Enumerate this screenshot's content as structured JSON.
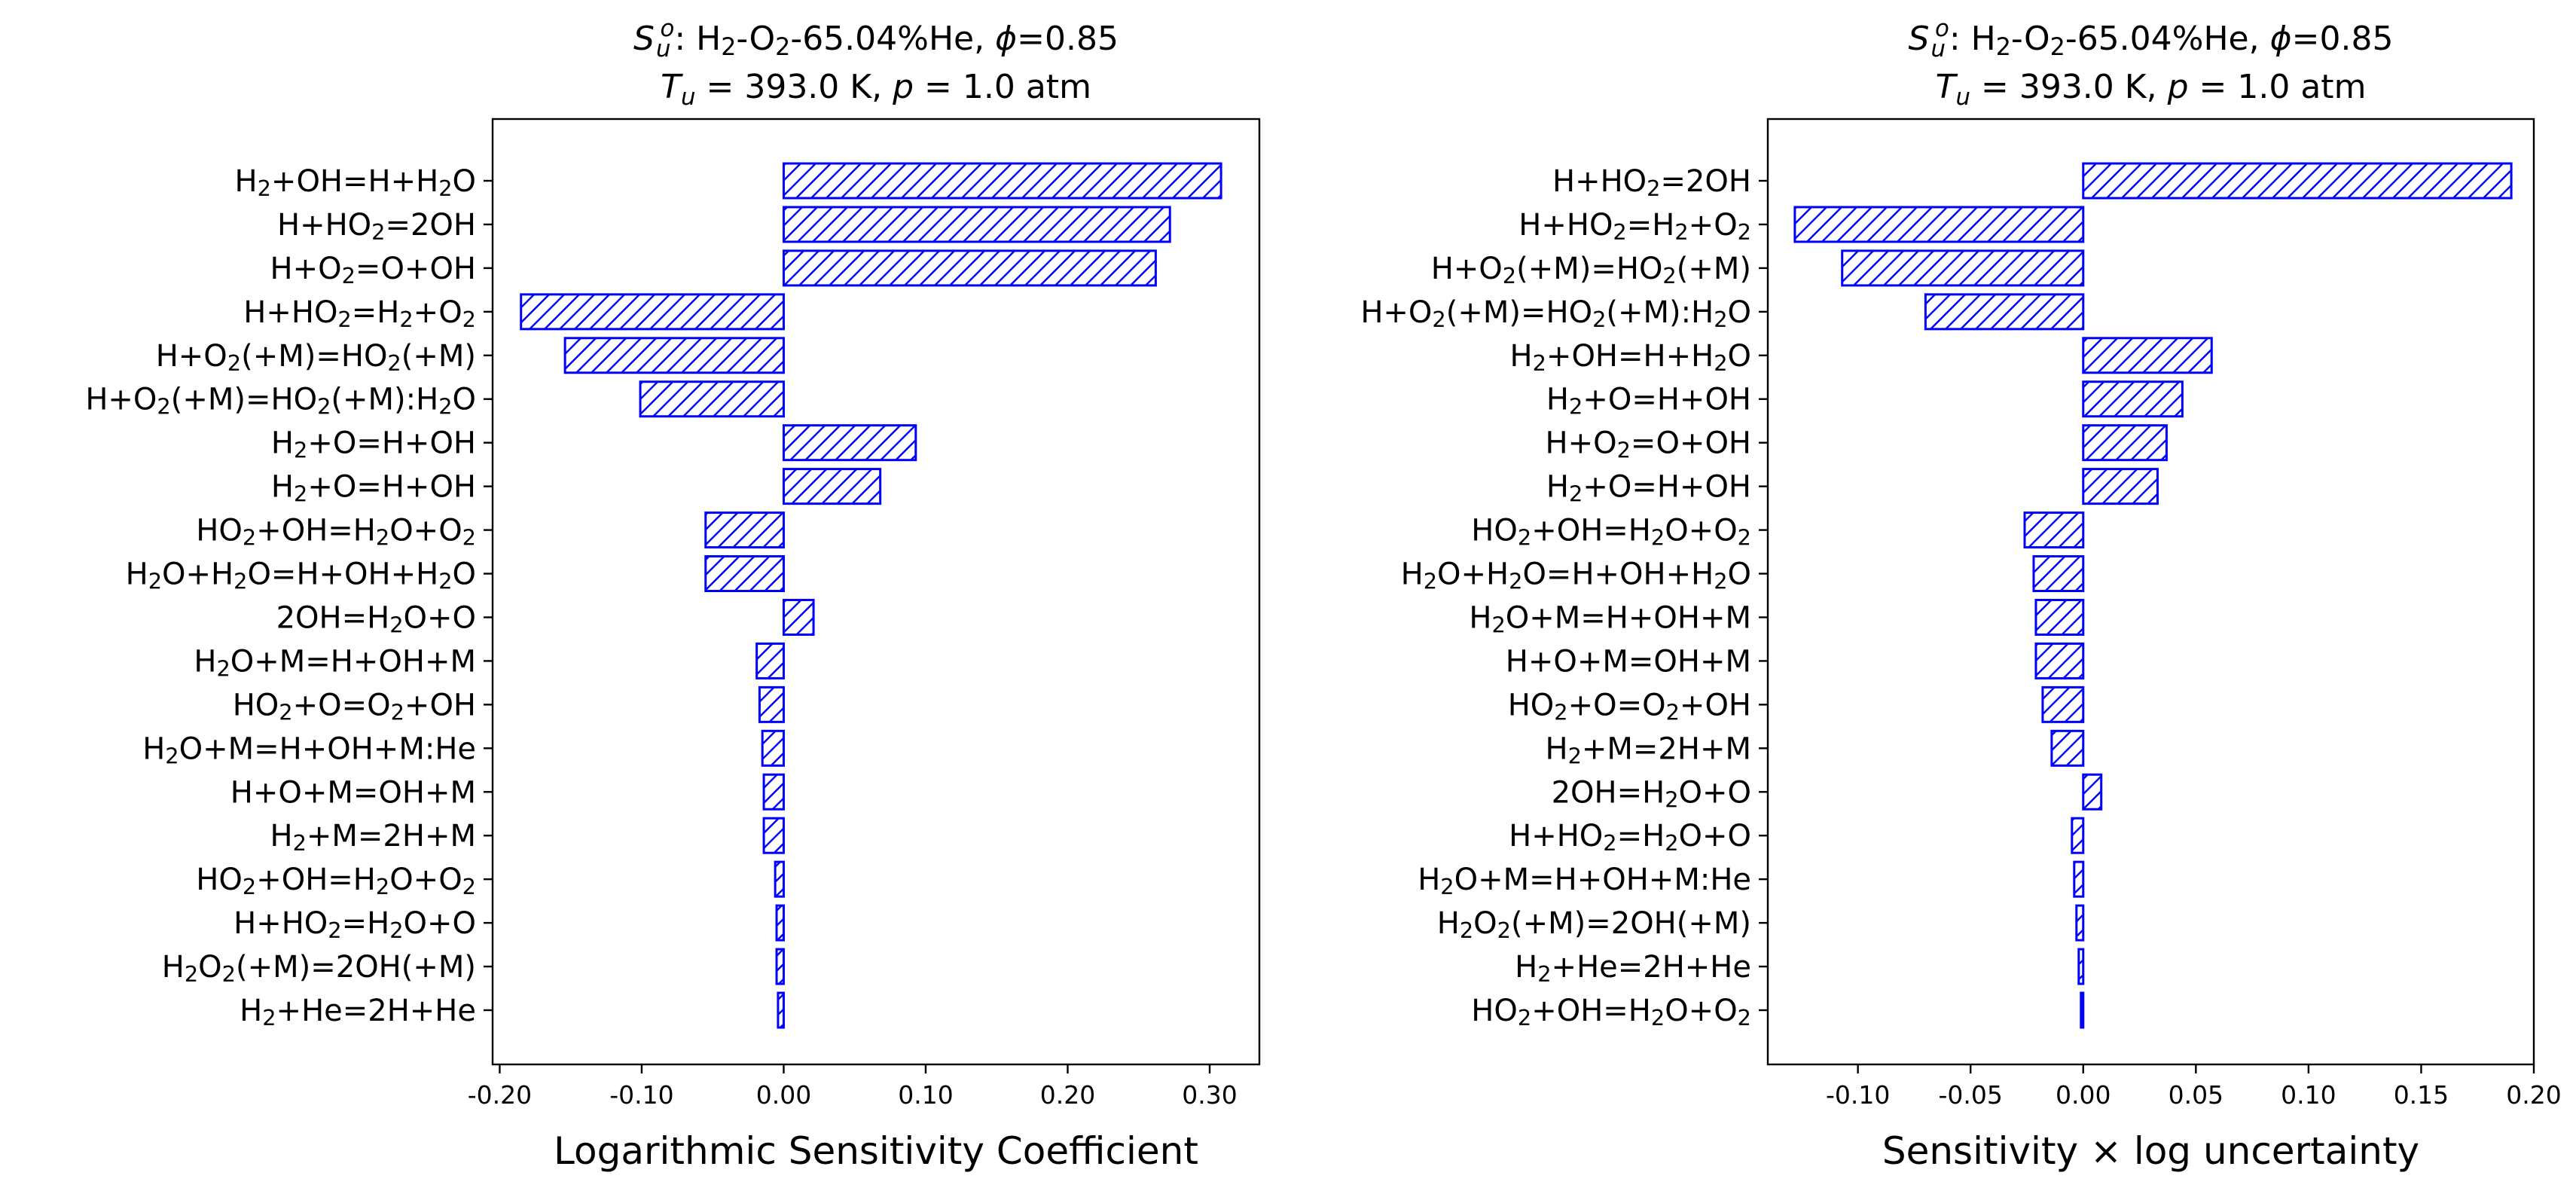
{
  "charts": [
    {
      "type": "bar",
      "orientation": "horizontal",
      "title_line1": "S_u^o: H2-O2-65.04%He, ϕ=0.85",
      "title_line2": "T_u = 393.0 K, p = 1.0 atm",
      "xlabel": "Logarithmic Sensitivity Coefficient",
      "xlim": [
        -0.205,
        0.335
      ],
      "xticks": [
        -0.2,
        -0.1,
        0.0,
        0.1,
        0.2,
        0.3
      ],
      "xtick_labels": [
        "-0.20",
        "-0.10",
        "0.00",
        "0.10",
        "0.20",
        "0.30"
      ],
      "bar_color": "#0000ff",
      "hatch": "diagonal",
      "categories": [
        "H2+OH=H+H2O",
        "H+HO2=2OH",
        "H+O2=O+OH",
        "H+HO2=H2+O2",
        "H+O2(+M)=HO2(+M)",
        "H+O2(+M)=HO2(+M):H2O",
        "H2+O=H+OH",
        "H2+O=H+OH",
        "HO2+OH=H2O+O2",
        "H2O+H2O=H+OH+H2O",
        "2OH=H2O+O",
        "H2O+M=H+OH+M",
        "HO2+O=O2+OH",
        "H2O+M=H+OH+M:He",
        "H+O+M=OH+M",
        "H2+M=2H+M",
        "HO2+OH=H2O+O2",
        "H+HO2=H2O+O",
        "H2O2(+M)=2OH(+M)",
        "H2+He=2H+He"
      ],
      "values": [
        0.308,
        0.272,
        0.262,
        -0.185,
        -0.154,
        -0.101,
        0.093,
        0.068,
        -0.055,
        -0.055,
        0.021,
        -0.019,
        -0.017,
        -0.015,
        -0.014,
        -0.014,
        -0.006,
        -0.005,
        -0.005,
        -0.004
      ]
    },
    {
      "type": "bar",
      "orientation": "horizontal",
      "title_line1": "S_u^o: H2-O2-65.04%He, ϕ=0.85",
      "title_line2": "T_u = 393.0 K, p = 1.0 atm",
      "xlabel": "Sensitivity × log uncertainty",
      "xlim": [
        -0.14,
        0.2
      ],
      "xticks": [
        -0.1,
        -0.05,
        0.0,
        0.05,
        0.1,
        0.15,
        0.2
      ],
      "xtick_labels": [
        "-0.10",
        "-0.05",
        "0.00",
        "0.05",
        "0.10",
        "0.15",
        "0.20"
      ],
      "bar_color": "#0000ff",
      "hatch": "diagonal",
      "categories": [
        "H+HO2=2OH",
        "H+HO2=H2+O2",
        "H+O2(+M)=HO2(+M)",
        "H+O2(+M)=HO2(+M):H2O",
        "H2+OH=H+H2O",
        "H2+O=H+OH",
        "H+O2=O+OH",
        "H2+O=H+OH",
        "HO2+OH=H2O+O2",
        "H2O+H2O=H+OH+H2O",
        "H2O+M=H+OH+M",
        "H+O+M=OH+M",
        "HO2+O=O2+OH",
        "H2+M=2H+M",
        "2OH=H2O+O",
        "H+HO2=H2O+O",
        "H2O+M=H+OH+M:He",
        "H2O2(+M)=2OH(+M)",
        "H2+He=2H+He",
        "HO2+OH=H2O+O2"
      ],
      "values": [
        0.19,
        -0.128,
        -0.107,
        -0.07,
        0.057,
        0.044,
        0.037,
        0.033,
        -0.026,
        -0.022,
        -0.021,
        -0.021,
        -0.018,
        -0.014,
        0.008,
        -0.005,
        -0.004,
        -0.003,
        -0.002,
        -0.001
      ]
    }
  ]
}
